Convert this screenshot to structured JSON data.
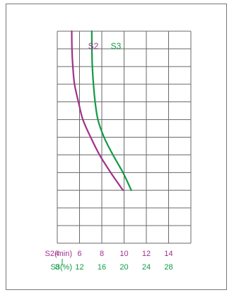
{
  "chart_data": {
    "type": "line",
    "title": "",
    "grid": true,
    "y_rows": 12,
    "x_axes": [
      {
        "label": "S2(min)",
        "ticks": [
          4,
          6,
          8,
          10,
          12,
          14
        ],
        "range": [
          4,
          14
        ],
        "color": "#a0328c"
      },
      {
        "label": "S3(%)",
        "ticks": [
          8,
          12,
          16,
          20,
          24,
          28
        ],
        "range": [
          8,
          28
        ],
        "color": "#129a46"
      }
    ],
    "series": [
      {
        "name": "S2",
        "axis": 0,
        "color": "#a0328c",
        "points": [
          [
            5.3,
            12
          ],
          [
            5.32,
            11
          ],
          [
            5.4,
            10
          ],
          [
            5.55,
            9
          ],
          [
            5.9,
            8
          ],
          [
            6.3,
            7
          ],
          [
            7.0,
            6
          ],
          [
            7.8,
            5
          ],
          [
            8.8,
            4
          ],
          [
            9.9,
            3
          ]
        ]
      },
      {
        "name": "S3",
        "axis": 1,
        "color": "#129a46",
        "points": [
          [
            14.2,
            12
          ],
          [
            14.22,
            11
          ],
          [
            14.3,
            10
          ],
          [
            14.5,
            9
          ],
          [
            14.8,
            8
          ],
          [
            15.3,
            7
          ],
          [
            16.4,
            6
          ],
          [
            18.0,
            5
          ],
          [
            19.8,
            4
          ],
          [
            21.3,
            3
          ]
        ]
      }
    ]
  }
}
